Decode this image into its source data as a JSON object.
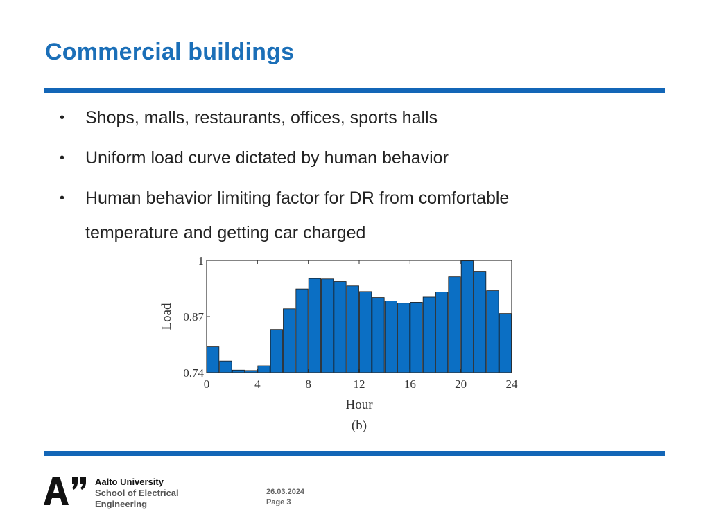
{
  "slide": {
    "title": "Commercial buildings",
    "bullets": [
      "Shops, malls, restaurants, offices, sports halls",
      "Uniform load curve dictated by human behavior",
      "Human behavior limiting factor for DR from comfortable temperature and getting car charged"
    ],
    "bullet_line2": "temperature and getting car charged",
    "bullet_line1": "Human behavior limiting factor for DR from comfortable"
  },
  "chart_data": {
    "type": "bar",
    "xlabel": "Hour",
    "ylabel": "Load",
    "caption": "(b)",
    "xlim": [
      0,
      24
    ],
    "ylim": [
      0.74,
      1
    ],
    "xticks": [
      "0",
      "4",
      "8",
      "12",
      "16",
      "20",
      "24"
    ],
    "yticks": [
      "0.74",
      "0.87",
      "1"
    ],
    "grid": false,
    "bar_color": "#0b6fc4",
    "categories": [
      1,
      2,
      3,
      4,
      5,
      6,
      7,
      8,
      9,
      10,
      11,
      12,
      13,
      14,
      15,
      16,
      17,
      18,
      19,
      20,
      21,
      22,
      23,
      24
    ],
    "values": [
      0.8,
      0.767,
      0.746,
      0.745,
      0.756,
      0.84,
      0.888,
      0.934,
      0.958,
      0.957,
      0.951,
      0.941,
      0.928,
      0.914,
      0.906,
      0.901,
      0.903,
      0.915,
      0.927,
      0.962,
      0.999,
      0.975,
      0.93,
      0.877
    ]
  },
  "footer": {
    "logo_text": "A”",
    "university": "Aalto University",
    "school_line1": "School of Electrical",
    "school_line2": "Engineering",
    "date": "26.03.2024",
    "page": "Page 3"
  }
}
